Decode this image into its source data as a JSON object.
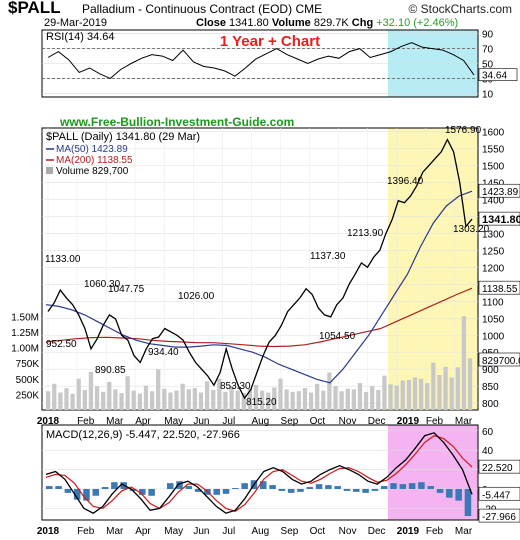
{
  "header": {
    "symbol": "$PALL",
    "name": "Palladium - Continuous Contract (EOD)",
    "exchange": "CME",
    "logo": "© StockCharts.com",
    "date": "29-Mar-2019",
    "close_label": "Close",
    "close": "1341.80",
    "volume_label": "Volume",
    "volume": "829.7K",
    "chg_label": "Chg",
    "chg": "+32.10 (+2.46%)",
    "chg_color": "#2a9d2a",
    "banner": "1 Year + Chart",
    "banner_color": "#e8201e",
    "site": "www.Free-Bullion-Investment-Guide.com",
    "site_color": "#1a9a1a"
  },
  "colors": {
    "price": "#000000",
    "ma50": "#2a3a8f",
    "ma200": "#b02020",
    "highlight_year": "#fdf6b5",
    "highlight_rsi": "#b8ecf5",
    "highlight_macd": "#f4b3f1",
    "volume_bar": "#c8c8c8",
    "macd_hist": "#3a79b5"
  },
  "chart_data": [
    {
      "type": "line",
      "title": "RSI(14) 34.64",
      "series": [
        {
          "name": "RSI(14)",
          "value_label": "34.64",
          "values": [
            58,
            66,
            55,
            38,
            44,
            36,
            30,
            42,
            50,
            57,
            62,
            60,
            54,
            68,
            52,
            46,
            44,
            40,
            33,
            44,
            56,
            63,
            70,
            62,
            56,
            50,
            56,
            60,
            57,
            66,
            70,
            58,
            62,
            66,
            73,
            78,
            72,
            70,
            68,
            62,
            54,
            34.64
          ]
        }
      ],
      "y_ticks": [
        10,
        30,
        50,
        70,
        90
      ],
      "bands": [
        30,
        70
      ],
      "last_value": "34.64"
    },
    {
      "type": "line",
      "title": "$PALL (Daily) 1341.80 (29 Mar)",
      "x_ticks": [
        "2018",
        "Feb",
        "Mar",
        "Apr",
        "May",
        "Jun",
        "Jul",
        "Aug",
        "Sep",
        "Oct",
        "Nov",
        "Dec",
        "2019",
        "Feb",
        "Mar"
      ],
      "y_ticks": [
        800,
        850,
        900,
        950,
        1000,
        1050,
        1100,
        1150,
        1200,
        1250,
        1300,
        1350,
        1400,
        1450,
        1500,
        1550,
        1600
      ],
      "volume_ticks": [
        "250K",
        "500K",
        "750K",
        "1.00M",
        "1.25M",
        "1.50M"
      ],
      "ylim": [
        780,
        1610
      ],
      "series": [
        {
          "name": "$PALL (Daily)",
          "values": [
            1070,
            1095,
            1133,
            1110,
            1090,
            1060,
            1020,
            960,
            990,
            1030,
            1060,
            1048,
            1000,
            985,
            940,
            920,
            960,
            990,
            995,
            1020,
            1010,
            1000,
            985,
            950,
            920,
            900,
            880,
            853,
            890,
            960,
            900,
            850,
            815,
            840,
            890,
            940,
            980,
            1000,
            1030,
            1070,
            1090,
            1110,
            1137,
            1120,
            1080,
            1060,
            1054,
            1090,
            1110,
            1150,
            1180,
            1213,
            1200,
            1230,
            1250,
            1300,
            1340,
            1396,
            1390,
            1410,
            1440,
            1480,
            1500,
            1520,
            1540,
            1576,
            1540,
            1450,
            1320,
            1341.8
          ]
        },
        {
          "name": "MA(50)",
          "value_label": "1423.89",
          "values": [
            1090,
            1085,
            1075,
            1060,
            1040,
            1020,
            1000,
            985,
            975,
            970,
            965,
            965,
            968,
            972,
            970,
            960,
            950,
            935,
            915,
            900,
            885,
            870,
            860,
            900,
            950,
            1000,
            1060,
            1120,
            1180,
            1260,
            1330,
            1380,
            1410,
            1423.89
          ]
        },
        {
          "name": "MA(200)",
          "value_label": "1138.55",
          "values": [
            980,
            985,
            990,
            993,
            994,
            992,
            990,
            985,
            982,
            980,
            978,
            978,
            975,
            972,
            968,
            967,
            968,
            972,
            980,
            990,
            1000,
            1010,
            1020,
            1040,
            1060,
            1080,
            1100,
            1120,
            1138.55
          ]
        },
        {
          "name": "Volume",
          "value_label": "829,700",
          "values": [
            300,
            420,
            280,
            350,
            260,
            500,
            320,
            610,
            380,
            290,
            450,
            330,
            270,
            540,
            310,
            260,
            390,
            300,
            650,
            340,
            280,
            310,
            420,
            330,
            350,
            280,
            460,
            320,
            500,
            290,
            380,
            310,
            270,
            340,
            400,
            310,
            280,
            360,
            500,
            330,
            290,
            300,
            350,
            280,
            420,
            310,
            600,
            380,
            300,
            340,
            330,
            430,
            290,
            380,
            320,
            550,
            410,
            390,
            470,
            480,
            520,
            500,
            430,
            760,
            560,
            690,
            520,
            680,
            1500,
            829.7
          ]
        }
      ],
      "annotations": [
        "1133.00",
        "1060.30",
        "1047.75",
        "1026.00",
        "952.50",
        "890.85",
        "934.40",
        "853.30",
        "815.20",
        "1137.30",
        "1054.50",
        "1213.90",
        "1396.40",
        "1576.90",
        "1303.20"
      ],
      "last_price": "1341.80",
      "last_ma50": "1423.89",
      "last_ma200": "1138.55",
      "last_volume": "829700.0"
    },
    {
      "type": "line",
      "title": "MACD(12,26,9) -5.447, 22.520, -27.966",
      "x_ticks": [
        "2018",
        "Feb",
        "Mar",
        "Apr",
        "May",
        "Jun",
        "Jul",
        "Aug",
        "Sep",
        "Oct",
        "Nov",
        "Dec",
        "2019",
        "Feb",
        "Mar"
      ],
      "y_ticks": [
        -20,
        0,
        20,
        40,
        60
      ],
      "series": [
        {
          "name": "MACD",
          "value_label": "-5.447",
          "values": [
            15,
            18,
            10,
            -5,
            -20,
            -25,
            -18,
            -5,
            5,
            0,
            -10,
            -22,
            -20,
            -8,
            5,
            8,
            2,
            -8,
            -18,
            -25,
            -22,
            -10,
            5,
            18,
            22,
            18,
            10,
            5,
            8,
            15,
            20,
            24,
            20,
            15,
            8,
            5,
            12,
            22,
            30,
            42,
            55,
            58,
            48,
            35,
            20,
            -5.447
          ]
        },
        {
          "name": "Signal",
          "value_label": "22.520",
          "values": [
            12,
            15,
            14,
            6,
            -8,
            -18,
            -20,
            -12,
            -2,
            2,
            -4,
            -15,
            -20,
            -14,
            -3,
            5,
            5,
            -2,
            -12,
            -20,
            -23,
            -16,
            -4,
            10,
            18,
            20,
            14,
            8,
            6,
            10,
            16,
            21,
            22,
            18,
            12,
            7,
            9,
            16,
            25,
            36,
            48,
            55,
            52,
            44,
            32,
            22.52
          ]
        },
        {
          "name": "Histogram",
          "value_label": "-27.966",
          "values": [
            3,
            3,
            -4,
            -11,
            -12,
            -7,
            2,
            7,
            7,
            -2,
            -6,
            -7,
            0,
            6,
            8,
            3,
            -3,
            -6,
            -6,
            -5,
            1,
            6,
            9,
            8,
            4,
            -2,
            -4,
            -3,
            2,
            5,
            4,
            3,
            -2,
            -3,
            -4,
            -2,
            3,
            6,
            5,
            6,
            7,
            3,
            -4,
            -9,
            -12,
            -27.966
          ]
        }
      ],
      "last_macd": "-5.447",
      "last_signal": "22.520",
      "last_hist": "-27.966"
    }
  ]
}
